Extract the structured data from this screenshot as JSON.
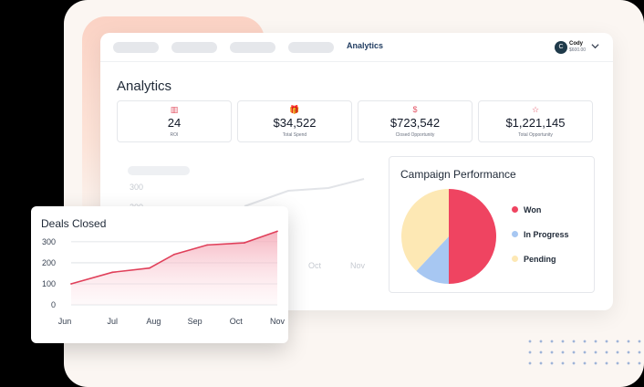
{
  "nav": {
    "active_link": "Analytics"
  },
  "user": {
    "initial": "C",
    "name": "Cody",
    "balance": "$600.00"
  },
  "page": {
    "title": "Analytics"
  },
  "stats": [
    {
      "icon": "chart-bars-icon",
      "glyph": "▥",
      "value": "24",
      "label": "ROI"
    },
    {
      "icon": "gift-icon",
      "glyph": "🎁",
      "value": "$34,522",
      "label": "Total Spend"
    },
    {
      "icon": "dollar-icon",
      "glyph": "$",
      "value": "$723,542",
      "label": "Closed Opportunity"
    },
    {
      "icon": "star-icon",
      "glyph": "☆",
      "value": "$1,221,145",
      "label": "Total Opportunity"
    }
  ],
  "background_chart": {
    "y_ticks": [
      "300",
      "200"
    ],
    "x_ticks": [
      "Oct",
      "Nov"
    ]
  },
  "campaign": {
    "title": "Campaign Performance",
    "chart_data": {
      "type": "pie",
      "labels": [
        "Won",
        "In Progress",
        "Pending"
      ],
      "values": [
        50,
        12,
        38
      ],
      "colors": [
        "#ef4461",
        "#a7c7f2",
        "#fde8b4"
      ]
    }
  },
  "deals": {
    "title": "Deals Closed",
    "chart_data": {
      "type": "area",
      "categories": [
        "Jun",
        "Jul",
        "Aug",
        "Sep",
        "Oct",
        "Nov"
      ],
      "x": [
        0,
        1,
        1.9,
        2.5,
        3.3,
        4.2,
        5
      ],
      "values": [
        100,
        155,
        175,
        240,
        285,
        295,
        350
      ],
      "y_ticks": [
        0,
        100,
        200,
        300
      ],
      "ylim": [
        0,
        330
      ],
      "color": "#e0405a"
    }
  }
}
